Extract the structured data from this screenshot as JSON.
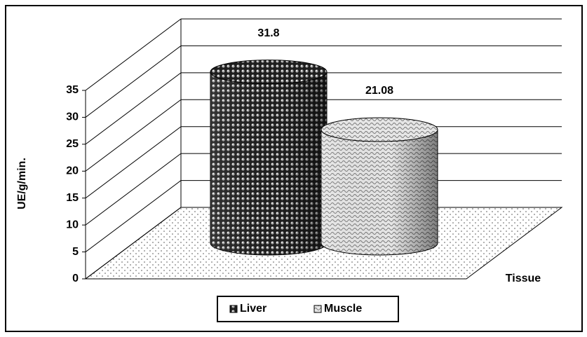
{
  "chart_data": {
    "type": "cylinder",
    "y_label": "UE/g/min.",
    "x_label": "Tissue",
    "series": [
      {
        "name": "Liver",
        "color": "#2a2a2a",
        "values": [
          31.8
        ]
      },
      {
        "name": "Muscle",
        "color": "#c8c8c8",
        "values": [
          21.08
        ]
      }
    ],
    "ylim": [
      0,
      35
    ],
    "yticks": [
      0,
      5,
      10,
      15,
      20,
      25,
      30,
      35
    ],
    "grid": true,
    "legend": "bottom"
  }
}
